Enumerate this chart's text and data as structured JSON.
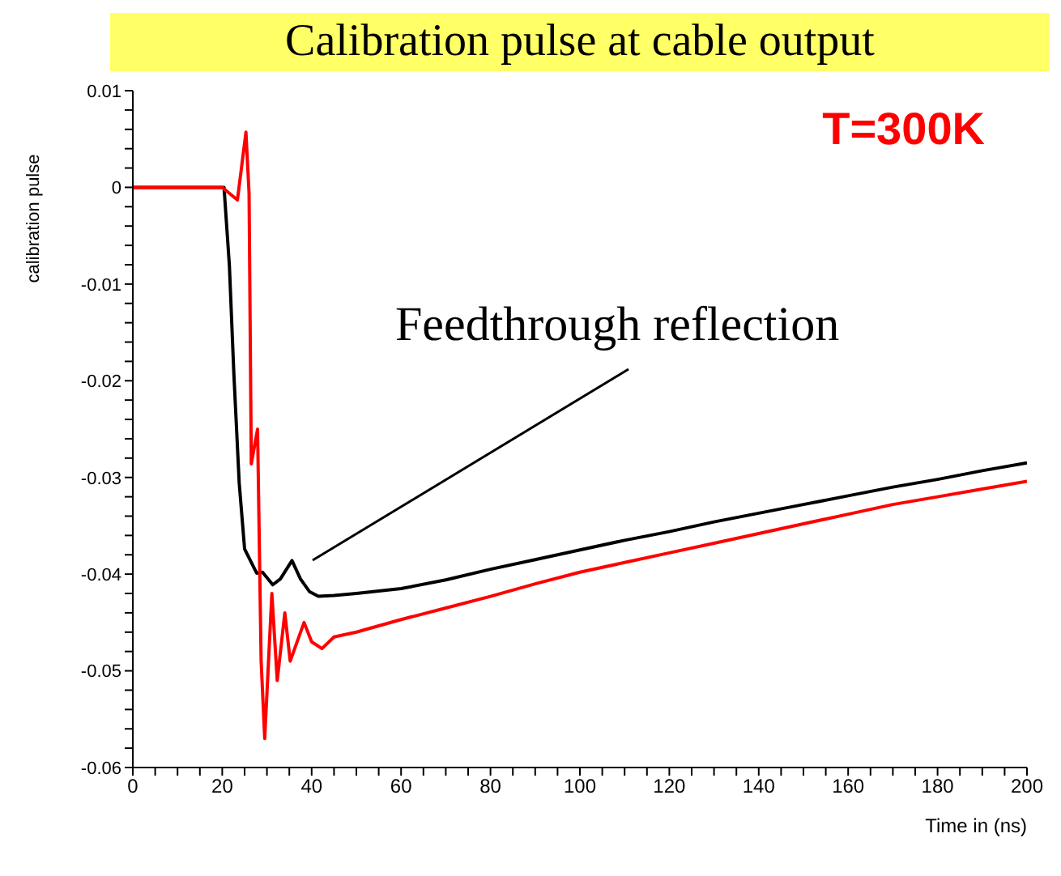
{
  "chart_data": {
    "type": "line",
    "title": "Calibration pulse at cable output",
    "xlabel": "Time in (ns)",
    "ylabel": "calibration pulse",
    "annotations": [
      "T=300K",
      "Feedthrough reflection"
    ],
    "series": [
      {
        "color": "#000000",
        "x": [
          0,
          5,
          10,
          15,
          20.4,
          21.6,
          22.6,
          23.8,
          25,
          27.7,
          29,
          31.3,
          33,
          35.6,
          37.5,
          39.5,
          41.5,
          45,
          50,
          60,
          70,
          80,
          90,
          100,
          110,
          120,
          130,
          140,
          150,
          160,
          170,
          180,
          190,
          200
        ],
        "values": [
          0,
          0,
          0,
          0,
          0,
          -0.0081,
          -0.0193,
          -0.0306,
          -0.0374,
          -0.0399,
          -0.0398,
          -0.0411,
          -0.0405,
          -0.0386,
          -0.0405,
          -0.0418,
          -0.0423,
          -0.0422,
          -0.042,
          -0.0415,
          -0.0406,
          -0.0395,
          -0.0385,
          -0.0375,
          -0.0365,
          -0.0356,
          -0.0346,
          -0.0337,
          -0.0328,
          -0.0319,
          -0.031,
          -0.0302,
          -0.0293,
          -0.0285
        ]
      },
      {
        "color": "#ff0000",
        "x": [
          0,
          5,
          10,
          15,
          20,
          23.4,
          25.3,
          26,
          26.5,
          27.9,
          28.7,
          29.5,
          31.1,
          32.3,
          34,
          35.2,
          38.3,
          40,
          42.3,
          45,
          50,
          60,
          70,
          80,
          90,
          100,
          110,
          120,
          130,
          140,
          150,
          160,
          170,
          180,
          190,
          200
        ],
        "values": [
          0,
          0,
          0,
          0,
          0,
          -0.0013,
          0.0057,
          -0.0006,
          -0.0286,
          -0.025,
          -0.049,
          -0.057,
          -0.042,
          -0.051,
          -0.044,
          -0.049,
          -0.045,
          -0.047,
          -0.0477,
          -0.0465,
          -0.046,
          -0.0447,
          -0.0435,
          -0.0423,
          -0.041,
          -0.0398,
          -0.0388,
          -0.0378,
          -0.0368,
          -0.0358,
          -0.0348,
          -0.0338,
          -0.0328,
          -0.032,
          -0.0312,
          -0.0304
        ]
      }
    ],
    "xlim": [
      0,
      200
    ],
    "xticks": [
      0,
      {
        "value": 5,
        "label": null
      },
      {
        "value": 10,
        "label": null
      },
      {
        "value": 15,
        "label": null
      },
      20,
      {
        "value": 25,
        "label": null
      },
      {
        "value": 30,
        "label": null
      },
      {
        "value": 35,
        "label": null
      },
      40,
      {
        "value": 45,
        "label": null
      },
      {
        "value": 50,
        "label": null
      },
      {
        "value": 55,
        "label": null
      },
      60,
      {
        "value": 65,
        "label": null
      },
      {
        "value": 70,
        "label": null
      },
      {
        "value": 75,
        "label": null
      },
      80,
      {
        "value": 85,
        "label": null
      },
      {
        "value": 90,
        "label": null
      },
      {
        "value": 95,
        "label": null
      },
      100,
      {
        "value": 105,
        "label": null
      },
      {
        "value": 110,
        "label": null
      },
      {
        "value": 115,
        "label": null
      },
      120,
      {
        "value": 125,
        "label": null
      },
      {
        "value": 130,
        "label": null
      },
      {
        "value": 135,
        "label": null
      },
      140,
      {
        "value": 145,
        "label": null
      },
      {
        "value": 150,
        "label": null
      },
      {
        "value": 155,
        "label": null
      },
      160,
      {
        "value": 165,
        "label": null
      },
      {
        "value": 170,
        "label": null
      },
      {
        "value": 175,
        "label": null
      },
      180,
      {
        "value": 185,
        "label": null
      },
      {
        "value": 190,
        "label": null
      },
      {
        "value": 195,
        "label": null
      },
      200
    ],
    "ylim": [
      -0.06,
      0.01
    ],
    "yticks": [
      {
        "value": -0.06,
        "label": "-0.06"
      },
      {
        "value": -0.058,
        "label": null
      },
      {
        "value": -0.056,
        "label": null
      },
      {
        "value": -0.054,
        "label": null
      },
      {
        "value": -0.052,
        "label": null
      },
      {
        "value": -0.05,
        "label": "-0.05"
      },
      {
        "value": -0.048,
        "label": null
      },
      {
        "value": -0.046,
        "label": null
      },
      {
        "value": -0.044,
        "label": null
      },
      {
        "value": -0.042,
        "label": null
      },
      {
        "value": -0.04,
        "label": "-0.04"
      },
      {
        "value": -0.038,
        "label": null
      },
      {
        "value": -0.036,
        "label": null
      },
      {
        "value": -0.034,
        "label": null
      },
      {
        "value": -0.032,
        "label": null
      },
      {
        "value": -0.03,
        "label": "-0.03"
      },
      {
        "value": -0.028,
        "label": null
      },
      {
        "value": -0.026,
        "label": null
      },
      {
        "value": -0.024,
        "label": null
      },
      {
        "value": -0.022,
        "label": null
      },
      {
        "value": -0.02,
        "label": "-0.02"
      },
      {
        "value": -0.018,
        "label": null
      },
      {
        "value": -0.016,
        "label": null
      },
      {
        "value": -0.014,
        "label": null
      },
      {
        "value": -0.012,
        "label": null
      },
      {
        "value": -0.01,
        "label": "-0.01"
      },
      {
        "value": -0.008,
        "label": null
      },
      {
        "value": -0.006,
        "label": null
      },
      {
        "value": -0.004,
        "label": null
      },
      {
        "value": -0.002,
        "label": null
      },
      0,
      {
        "value": 0.002,
        "label": null
      },
      {
        "value": 0.004,
        "label": null
      },
      {
        "value": 0.006,
        "label": null
      },
      {
        "value": 0.008,
        "label": null
      },
      {
        "value": 0.01,
        "label": "0.01"
      }
    ],
    "grid": false,
    "legend": false,
    "marker": "none",
    "line_style": "solid"
  }
}
